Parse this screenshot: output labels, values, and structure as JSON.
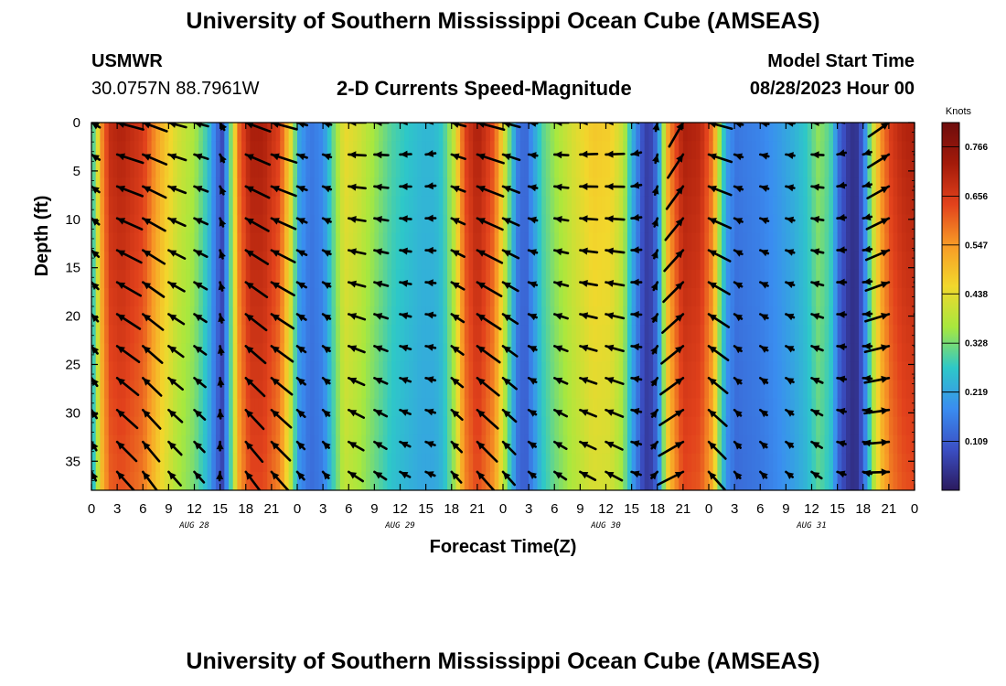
{
  "header": {
    "title": "University of Southern Mississippi Ocean Cube (AMSEAS)",
    "station": "USMWR",
    "coords": "30.0757N  88.7961W",
    "subtitle": "2-D Currents Speed-Magnitude",
    "start_label": "Model Start Time",
    "start_value": "08/28/2023 Hour 00"
  },
  "footer": {
    "title": "University of Southern Mississippi Ocean Cube (AMSEAS)"
  },
  "chart_data": {
    "type": "heatmap",
    "title": "2-D Currents Speed-Magnitude",
    "xlabel": "Forecast Time(Z)",
    "ylabel": "Depth (ft)",
    "x_unit": "hours since 08/28/2023 00Z",
    "xlim": [
      0,
      96
    ],
    "ylim": [
      0,
      38
    ],
    "y_inverted": true,
    "x_ticks": [
      {
        "h": 0,
        "label": "0"
      },
      {
        "h": 3,
        "label": "3"
      },
      {
        "h": 6,
        "label": "6"
      },
      {
        "h": 9,
        "label": "9"
      },
      {
        "h": 12,
        "label": "12"
      },
      {
        "h": 15,
        "label": "15"
      },
      {
        "h": 18,
        "label": "18"
      },
      {
        "h": 21,
        "label": "21"
      },
      {
        "h": 24,
        "label": "0"
      },
      {
        "h": 27,
        "label": "3"
      },
      {
        "h": 30,
        "label": "6"
      },
      {
        "h": 33,
        "label": "9"
      },
      {
        "h": 36,
        "label": "12"
      },
      {
        "h": 39,
        "label": "15"
      },
      {
        "h": 42,
        "label": "18"
      },
      {
        "h": 45,
        "label": "21"
      },
      {
        "h": 48,
        "label": "0"
      },
      {
        "h": 51,
        "label": "3"
      },
      {
        "h": 54,
        "label": "6"
      },
      {
        "h": 57,
        "label": "9"
      },
      {
        "h": 60,
        "label": "12"
      },
      {
        "h": 63,
        "label": "15"
      },
      {
        "h": 66,
        "label": "18"
      },
      {
        "h": 69,
        "label": "21"
      },
      {
        "h": 72,
        "label": "0"
      },
      {
        "h": 75,
        "label": "3"
      },
      {
        "h": 78,
        "label": "6"
      },
      {
        "h": 81,
        "label": "9"
      },
      {
        "h": 84,
        "label": "12"
      },
      {
        "h": 87,
        "label": "15"
      },
      {
        "h": 90,
        "label": "18"
      },
      {
        "h": 93,
        "label": "21"
      },
      {
        "h": 96,
        "label": "0"
      }
    ],
    "date_labels": [
      {
        "h": 12,
        "label": "AUG 28"
      },
      {
        "h": 36,
        "label": "AUG 29"
      },
      {
        "h": 60,
        "label": "AUG 30"
      },
      {
        "h": 84,
        "label": "AUG 31"
      }
    ],
    "y_ticks": [
      0,
      5,
      10,
      15,
      20,
      25,
      30,
      35
    ],
    "colorbar": {
      "unit_label": "Knots",
      "min": 0.0,
      "max": 0.82,
      "tick_values": [
        0.109,
        0.219,
        0.328,
        0.438,
        0.547,
        0.656,
        0.766
      ],
      "tick_labels": [
        "0.109",
        "0.219",
        "0.328",
        "0.438",
        "0.547",
        "0.656",
        "0.766"
      ],
      "colors": [
        "#2b1a5e",
        "#3b4fc4",
        "#3a8df0",
        "#2ec8c8",
        "#a8e83e",
        "#f2d72c",
        "#f89a26",
        "#e2421c",
        "#a31a0a",
        "#6e0d0d"
      ]
    },
    "speed_profile": {
      "description": "surface current speed (knots) versus forecast hour; decays slightly with depth",
      "hours": [
        0,
        0.6,
        1.3,
        2.2,
        3.5,
        6,
        8,
        10,
        12,
        13.5,
        14.5,
        15.3,
        16.2,
        17.2,
        18.5,
        20,
        22,
        23.2,
        24.2,
        25.5,
        27,
        28,
        29.5,
        31,
        33,
        35,
        37,
        38.5,
        40,
        41,
        42.3,
        43.5,
        45,
        47,
        48.6,
        49.7,
        50.6,
        51.5,
        52.5,
        54,
        56,
        58.5,
        60.5,
        62,
        63,
        64.2,
        65,
        66,
        67.3,
        69,
        71,
        72.5,
        73.3,
        74.2,
        75.2,
        76.5,
        78,
        80,
        82,
        83.5,
        84.8,
        86.2,
        87.3,
        88.5,
        89.5,
        90.3,
        91,
        92,
        93.3,
        94.5,
        96
      ],
      "speeds": [
        0.25,
        0.4,
        0.58,
        0.69,
        0.71,
        0.66,
        0.52,
        0.42,
        0.37,
        0.28,
        0.15,
        0.08,
        0.32,
        0.6,
        0.72,
        0.72,
        0.64,
        0.45,
        0.22,
        0.15,
        0.18,
        0.3,
        0.45,
        0.42,
        0.36,
        0.3,
        0.27,
        0.25,
        0.25,
        0.28,
        0.4,
        0.64,
        0.72,
        0.62,
        0.35,
        0.16,
        0.12,
        0.2,
        0.3,
        0.36,
        0.42,
        0.48,
        0.47,
        0.4,
        0.25,
        0.1,
        0.05,
        0.15,
        0.55,
        0.72,
        0.7,
        0.58,
        0.35,
        0.2,
        0.15,
        0.16,
        0.17,
        0.2,
        0.24,
        0.28,
        0.35,
        0.3,
        0.12,
        0.04,
        0.05,
        0.2,
        0.38,
        0.55,
        0.66,
        0.7,
        0.72
      ]
    },
    "vectors": {
      "description": "current direction arrows, one per (hour, depth) sample; dir = compass degrees the current flows toward",
      "depths": [
        0,
        3.3,
        6.6,
        9.9,
        13.2,
        16.5,
        19.8,
        23.1,
        26.4,
        29.7,
        33,
        36.1
      ],
      "hours": [
        0,
        3,
        6,
        9,
        12,
        15,
        18,
        21,
        24,
        27,
        30,
        33,
        36,
        39,
        42,
        45,
        48,
        51,
        54,
        57,
        60,
        63,
        66,
        69,
        72,
        75,
        78,
        81,
        84,
        87,
        90,
        93,
        96
      ],
      "dir_by_hour": [
        315,
        300,
        305,
        300,
        300,
        345,
        305,
        300,
        300,
        300,
        285,
        285,
        280,
        275,
        300,
        300,
        300,
        290,
        285,
        280,
        280,
        270,
        25,
        45,
        300,
        300,
        295,
        290,
        285,
        270,
        265,
        70,
        300
      ],
      "depth_veer": 3
    }
  }
}
